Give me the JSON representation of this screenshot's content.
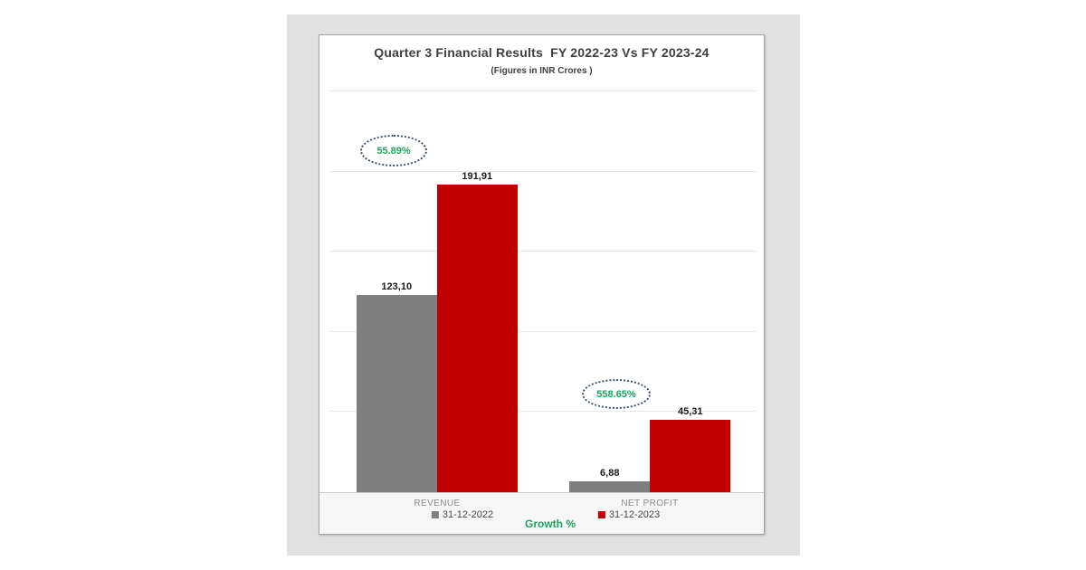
{
  "chart_data": {
    "type": "bar",
    "title": "Quarter 3 Financial Results  FY 2022-23 Vs FY 2023-24",
    "subtitle": "(Figures in INR Crores )",
    "growth_label": "Growth %",
    "categories": [
      "REVENUE",
      "NET PROFIT"
    ],
    "series": [
      {
        "name": "31-12-2022",
        "color": "#7f7f7f",
        "values": [
          123.1,
          6.88
        ],
        "labels": [
          "123,10",
          "6,88"
        ]
      },
      {
        "name": "31-12-2023",
        "color": "#c00000",
        "values": [
          191.91,
          45.31
        ],
        "labels": [
          "191,91",
          "45,31"
        ]
      }
    ],
    "growth_badges": [
      {
        "category": "REVENUE",
        "label": "55.89%"
      },
      {
        "category": "NET PROFIT",
        "label": "558.65%"
      }
    ],
    "ylim": [
      0,
      250
    ],
    "gridline_step": 50,
    "grid": "on",
    "xlabel": "",
    "ylabel": "",
    "legend_position": "bottom",
    "colors": {
      "bar_gray": "#7f7f7f",
      "bar_red": "#c00000",
      "growth_green": "#21a060",
      "panel_background": "#e1e1e1"
    }
  }
}
